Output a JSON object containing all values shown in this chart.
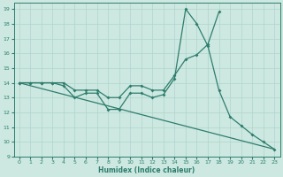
{
  "xlabel": "Humidex (Indice chaleur)",
  "xlim": [
    -0.5,
    23.5
  ],
  "ylim": [
    9,
    19.4
  ],
  "xticks": [
    0,
    1,
    2,
    3,
    4,
    5,
    6,
    7,
    8,
    9,
    10,
    11,
    12,
    13,
    14,
    15,
    16,
    17,
    18,
    19,
    20,
    21,
    22,
    23
  ],
  "yticks": [
    9,
    10,
    11,
    12,
    13,
    14,
    15,
    16,
    17,
    18,
    19
  ],
  "bg_color": "#cce8e0",
  "line_color": "#2e7d6e",
  "grid_color": "#b0d4cc",
  "series1_x": [
    0,
    1,
    2,
    3,
    4,
    5,
    6,
    7,
    8,
    9,
    10,
    11,
    12,
    13,
    14,
    15,
    16,
    17,
    18,
    19,
    20,
    21,
    22,
    23
  ],
  "series1_y": [
    14,
    14,
    14,
    14,
    13.8,
    13.0,
    13.3,
    13.3,
    12.2,
    12.2,
    13.3,
    13.3,
    13.0,
    13.2,
    14.3,
    19.0,
    18.0,
    16.5,
    13.5,
    11.7,
    11.1,
    10.5,
    10.0,
    9.5
  ],
  "series2_x": [
    0,
    1,
    2,
    3,
    4,
    5,
    6,
    7,
    8,
    9,
    10,
    11,
    12,
    13,
    14,
    15,
    16,
    17,
    18
  ],
  "series2_y": [
    14,
    14,
    14,
    14,
    14,
    13.5,
    13.5,
    13.5,
    13.0,
    13.0,
    13.8,
    13.8,
    13.5,
    13.5,
    14.5,
    15.6,
    15.9,
    16.6,
    18.8
  ],
  "series3_x": [
    0,
    23
  ],
  "series3_y": [
    14.0,
    9.5
  ]
}
